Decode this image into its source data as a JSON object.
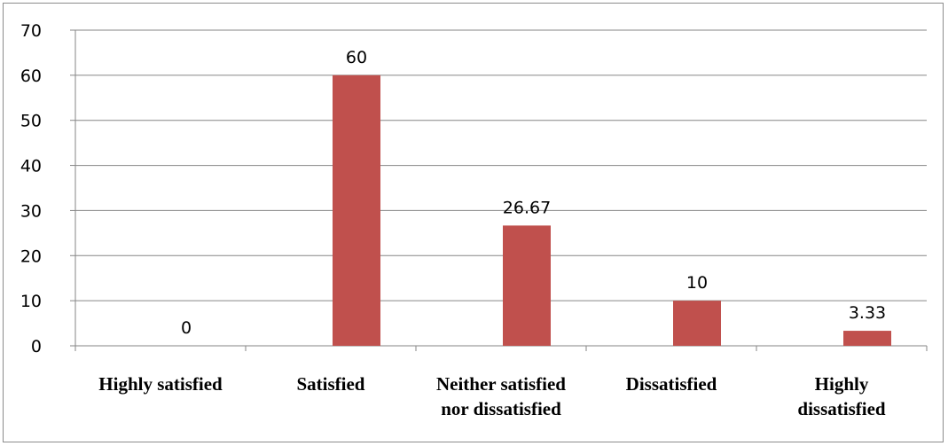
{
  "chart_data": {
    "type": "bar",
    "categories": [
      [
        "Highly satisfied"
      ],
      [
        "Satisfied"
      ],
      [
        "Neither satisfied",
        "nor dissatisfied"
      ],
      [
        "Dissatisfied"
      ],
      [
        "Highly",
        "dissatisfied"
      ]
    ],
    "values": [
      0,
      60,
      26.67,
      10,
      3.33
    ],
    "data_labels": [
      "0",
      "60",
      "26.67",
      "10",
      "3.33"
    ],
    "y_ticks": [
      0,
      10,
      20,
      30,
      40,
      50,
      60,
      70
    ],
    "ylim": [
      0,
      70
    ],
    "grid": true,
    "legend": "none",
    "colors": {
      "bar": "#c0504d",
      "grid": "#868686",
      "axis": "#868686"
    }
  }
}
